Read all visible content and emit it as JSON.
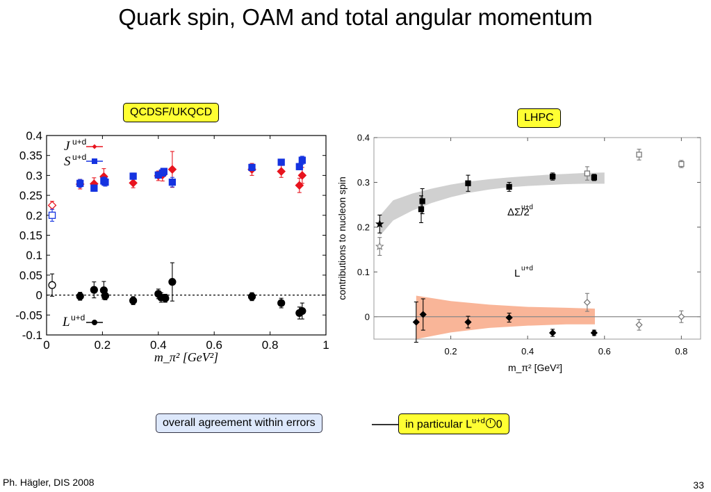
{
  "slide": {
    "title": "Quark spin, OAM and total angular momentum",
    "footer_left": "Ph. Hägler, DIS 2008",
    "page_number": "33",
    "left_badge": "QCDSF/UKQCD",
    "right_badge": "LHPC",
    "note_left": "overall agreement within errors",
    "note_right_prefix": "in particular L",
    "note_right_sup": "u+d",
    "note_right_suffix": "0",
    "note_right_glyph": "clock-icon"
  },
  "chart_data": [
    {
      "type": "scatter",
      "title": "",
      "xlabel": "m_π² [GeV²]",
      "ylabel": "",
      "xlim": [
        0,
        1
      ],
      "ylim": [
        -0.1,
        0.4
      ],
      "xticks": [
        "0",
        "0.2",
        "0.4",
        "0.6",
        "0.8",
        "1"
      ],
      "yticks": [
        "-0.1",
        "-0.05",
        "0",
        "0.05",
        "0.1",
        "0.15",
        "0.2",
        "0.25",
        "0.3",
        "0.35",
        "0.4"
      ],
      "zero_line": "dotted",
      "legend_position": "inside-left",
      "series": [
        {
          "name": "J",
          "label_sup": "u+d",
          "color": "#e8141e",
          "marker": "diamond",
          "points": [
            {
              "x": 0.02,
              "y": 0.225,
              "e": 0.01,
              "open": true
            },
            {
              "x": 0.12,
              "y": 0.278,
              "e": 0.012
            },
            {
              "x": 0.17,
              "y": 0.279,
              "e": 0.015
            },
            {
              "x": 0.205,
              "y": 0.297,
              "e": 0.02
            },
            {
              "x": 0.31,
              "y": 0.281,
              "e": 0.012
            },
            {
              "x": 0.4,
              "y": 0.299,
              "e": 0.012
            },
            {
              "x": 0.415,
              "y": 0.301,
              "e": 0.015
            },
            {
              "x": 0.45,
              "y": 0.315,
              "e": 0.045
            },
            {
              "x": 0.735,
              "y": 0.315,
              "e": 0.015
            },
            {
              "x": 0.84,
              "y": 0.31,
              "e": 0.015
            },
            {
              "x": 0.905,
              "y": 0.275,
              "e": 0.018
            },
            {
              "x": 0.915,
              "y": 0.3,
              "e": 0.02
            }
          ]
        },
        {
          "name": "S",
          "label_sup": "u+d",
          "color": "#1533e0",
          "marker": "square",
          "points": [
            {
              "x": 0.02,
              "y": 0.2,
              "e": 0.015,
              "open": true
            },
            {
              "x": 0.12,
              "y": 0.28,
              "e": 0.01
            },
            {
              "x": 0.17,
              "y": 0.268,
              "e": 0.008
            },
            {
              "x": 0.205,
              "y": 0.286,
              "e": 0.01
            },
            {
              "x": 0.21,
              "y": 0.283,
              "e": 0.01
            },
            {
              "x": 0.31,
              "y": 0.298,
              "e": 0.008
            },
            {
              "x": 0.4,
              "y": 0.301,
              "e": 0.008
            },
            {
              "x": 0.415,
              "y": 0.306,
              "e": 0.008
            },
            {
              "x": 0.42,
              "y": 0.31,
              "e": 0.008
            },
            {
              "x": 0.45,
              "y": 0.283,
              "e": 0.012
            },
            {
              "x": 0.735,
              "y": 0.32,
              "e": 0.008
            },
            {
              "x": 0.84,
              "y": 0.333,
              "e": 0.007
            },
            {
              "x": 0.905,
              "y": 0.322,
              "e": 0.008
            },
            {
              "x": 0.915,
              "y": 0.338,
              "e": 0.01
            }
          ]
        },
        {
          "name": "L",
          "label_sup": "u+d",
          "color": "#000000",
          "marker": "circle",
          "points": [
            {
              "x": 0.02,
              "y": 0.025,
              "e": 0.028,
              "open": true
            },
            {
              "x": 0.12,
              "y": -0.003,
              "e": 0.01
            },
            {
              "x": 0.17,
              "y": 0.013,
              "e": 0.02
            },
            {
              "x": 0.205,
              "y": 0.012,
              "e": 0.022
            },
            {
              "x": 0.21,
              "y": -0.002,
              "e": 0.01
            },
            {
              "x": 0.31,
              "y": -0.014,
              "e": 0.01
            },
            {
              "x": 0.4,
              "y": 0.003,
              "e": 0.012
            },
            {
              "x": 0.41,
              "y": -0.006,
              "e": 0.012
            },
            {
              "x": 0.425,
              "y": -0.008,
              "e": 0.01
            },
            {
              "x": 0.45,
              "y": 0.033,
              "e": 0.048
            },
            {
              "x": 0.735,
              "y": -0.004,
              "e": 0.01
            },
            {
              "x": 0.84,
              "y": -0.02,
              "e": 0.012
            },
            {
              "x": 0.905,
              "y": -0.045,
              "e": 0.015
            },
            {
              "x": 0.915,
              "y": -0.04,
              "e": 0.02
            }
          ]
        }
      ]
    },
    {
      "type": "scatter",
      "title": "",
      "xlabel": "m_π² [GeV²]",
      "ylabel": "contributions to nucleon spin",
      "xlim": [
        0,
        0.85
      ],
      "ylim": [
        -0.05,
        0.4
      ],
      "xticks": [
        "0.2",
        "0.4",
        "0.6",
        "0.8"
      ],
      "yticks": [
        "0",
        "0.1",
        "0.2",
        "0.3",
        "0.4"
      ],
      "zero_line": "solid",
      "grid": false,
      "bands": [
        {
          "name": "ΔΣ band",
          "color": "#d0d0d0",
          "x": [
            0.015,
            0.05,
            0.1,
            0.15,
            0.2,
            0.25,
            0.3,
            0.35,
            0.4,
            0.45,
            0.5,
            0.55,
            0.6
          ],
          "lower": [
            0.18,
            0.215,
            0.237,
            0.254,
            0.267,
            0.277,
            0.284,
            0.289,
            0.292,
            0.294,
            0.296,
            0.297,
            0.297
          ],
          "upper": [
            0.225,
            0.26,
            0.275,
            0.286,
            0.295,
            0.302,
            0.307,
            0.311,
            0.314,
            0.317,
            0.319,
            0.321,
            0.322
          ]
        },
        {
          "name": "L band",
          "color": "#f9b598",
          "x": [
            0.11,
            0.2,
            0.3,
            0.4,
            0.5,
            0.575
          ],
          "lower": [
            -0.05,
            -0.035,
            -0.025,
            -0.02,
            -0.017,
            -0.017
          ],
          "upper": [
            0.047,
            0.035,
            0.027,
            0.022,
            0.02,
            0.018
          ]
        }
      ],
      "series": [
        {
          "name": "ΔΣ/2",
          "label_sup": "u+d",
          "color": "#000000",
          "marker": "square",
          "points": [
            {
              "x": 0.123,
              "y": 0.24,
              "e": 0.03
            },
            {
              "x": 0.126,
              "y": 0.258,
              "e": 0.028
            },
            {
              "x": 0.245,
              "y": 0.298,
              "e": 0.018
            },
            {
              "x": 0.352,
              "y": 0.29,
              "e": 0.01
            },
            {
              "x": 0.465,
              "y": 0.313,
              "e": 0.008
            },
            {
              "x": 0.573,
              "y": 0.311,
              "e": 0.007
            },
            {
              "x": 0.555,
              "y": 0.32,
              "e": 0.015,
              "open": true
            },
            {
              "x": 0.69,
              "y": 0.362,
              "e": 0.012,
              "open": true
            },
            {
              "x": 0.8,
              "y": 0.341,
              "e": 0.008,
              "open": true
            }
          ]
        },
        {
          "name": "L",
          "label_sup": "u+d",
          "color": "#000000",
          "marker": "diamond",
          "points": [
            {
              "x": 0.11,
              "y": -0.012,
              "e": 0.045
            },
            {
              "x": 0.128,
              "y": 0.005,
              "e": 0.035
            },
            {
              "x": 0.245,
              "y": -0.012,
              "e": 0.013
            },
            {
              "x": 0.352,
              "y": -0.002,
              "e": 0.01
            },
            {
              "x": 0.465,
              "y": -0.036,
              "e": 0.008
            },
            {
              "x": 0.573,
              "y": -0.036,
              "e": 0.006
            },
            {
              "x": 0.555,
              "y": 0.032,
              "e": 0.02,
              "open": true
            },
            {
              "x": 0.69,
              "y": -0.018,
              "e": 0.012,
              "open": true
            },
            {
              "x": 0.8,
              "y": 0.0,
              "e": 0.013,
              "open": true
            }
          ]
        },
        {
          "name": "",
          "color": "#000000",
          "marker": "star",
          "points": [
            {
              "x": 0.015,
              "y": 0.207,
              "e": 0.02
            },
            {
              "x": 0.015,
              "y": 0.157,
              "e": 0.02,
              "open": true
            }
          ]
        }
      ]
    }
  ]
}
